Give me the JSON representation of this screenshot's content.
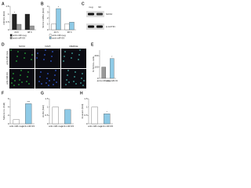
{
  "panels": [
    {
      "label": "A",
      "ylabel": "miR-93 (fold)",
      "categories": [
        "24 h",
        "48 h"
      ],
      "series": [
        {
          "name": "anti-miR-neg",
          "color": "#222222",
          "values": [
            1,
            1
          ]
        },
        {
          "name": "anti-miR-93",
          "color": "#999999",
          "values": [
            0.35,
            0.25
          ]
        }
      ],
      "ylim": [
        0,
        1.5
      ],
      "yticks": [
        0,
        0.5,
        1,
        1.5
      ],
      "significance": "*"
    },
    {
      "label": "B",
      "ylabel": "SOX2 mRNA (fold)",
      "categories": [
        "24 h",
        "48 h"
      ],
      "series": [
        {
          "name": "anti-miR-neg",
          "color": "#ffffff",
          "values": [
            1,
            1
          ]
        },
        {
          "name": "anti-miR-93",
          "color": "#8ecae6",
          "values": [
            3.6,
            1.3
          ]
        }
      ],
      "ylim": [
        0,
        4
      ],
      "yticks": [
        0,
        1,
        2,
        3,
        4
      ],
      "significance": "*"
    },
    {
      "label": "E",
      "ylabel": "% SOX2+ cells",
      "categories": [
        "anti-miR-neg",
        "anti-miR-93"
      ],
      "colors": [
        "#999999",
        "#8ecae6"
      ],
      "values": [
        100,
        175
      ],
      "ylim": [
        0,
        250
      ],
      "yticks": [
        0,
        100,
        200
      ],
      "significance": "*"
    },
    {
      "label": "F",
      "ylabel": "Sphere no. (fold)",
      "categories": [
        "anti-miR-neg",
        "anti-miR-93"
      ],
      "colors": [
        "#ffffff",
        "#8ecae6"
      ],
      "values": [
        1,
        4.8
      ],
      "ylim": [
        0,
        6
      ],
      "yticks": [
        0,
        2,
        4,
        6
      ],
      "significance": "***"
    },
    {
      "label": "G",
      "ylabel": "ALDH (fold)",
      "categories": [
        "anti-miR-neg",
        "anti-miR-93"
      ],
      "colors": [
        "#ffffff",
        "#8ecae6"
      ],
      "values": [
        1,
        0.85
      ],
      "ylim": [
        0,
        1.5
      ],
      "yticks": [
        0,
        0.5,
        1,
        1.5
      ],
      "significance": ""
    },
    {
      "label": "H",
      "ylabel": "Invasion (fold)",
      "categories": [
        "anti-miR-neg",
        "anti-miR-93"
      ],
      "colors": [
        "#ffffff",
        "#8ecae6"
      ],
      "values": [
        1,
        0.6
      ],
      "ylim": [
        0,
        1.5
      ],
      "yticks": [
        0,
        0.5,
        1,
        1.5
      ],
      "significance": "*"
    }
  ],
  "blot": {
    "label": "C",
    "lanes": [
      "neg",
      "93"
    ],
    "bands": [
      "SOX2",
      "β-ACTIN"
    ]
  },
  "images": {
    "label": "D",
    "columns": [
      "SOX2",
      "DAPI",
      "MERGE"
    ],
    "rows": [
      "anti-miR-neg",
      "anti-miR-93"
    ]
  }
}
